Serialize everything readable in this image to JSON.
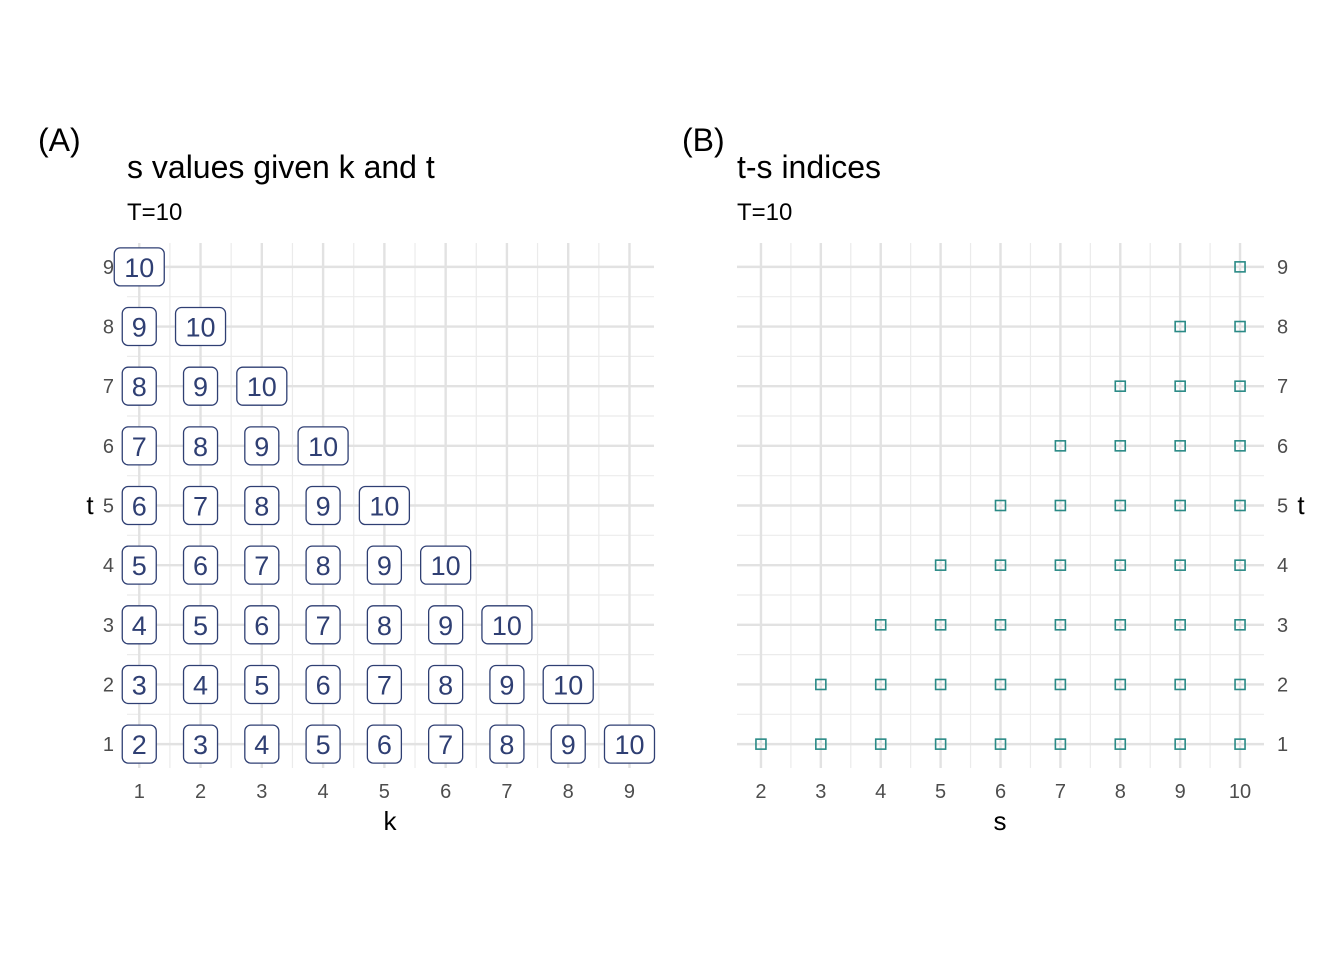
{
  "panels": [
    {
      "tag": "(A)",
      "chart_data": {
        "type": "scatter",
        "mark": "label",
        "title": "s values given k and t",
        "subtitle": "T=10",
        "xlabel": "k",
        "ylabel": "t",
        "x_ticks": [
          1,
          2,
          3,
          4,
          5,
          6,
          7,
          8,
          9
        ],
        "y_ticks": [
          1,
          2,
          3,
          4,
          5,
          6,
          7,
          8,
          9
        ],
        "xlim": [
          0.8,
          9.4
        ],
        "ylim": [
          0.6,
          9.4
        ],
        "y_axis_side": "left",
        "grid": true,
        "label_color": "#2f3f73",
        "points": [
          {
            "k": 1,
            "t": 1,
            "s": 2
          },
          {
            "k": 2,
            "t": 1,
            "s": 3
          },
          {
            "k": 3,
            "t": 1,
            "s": 4
          },
          {
            "k": 4,
            "t": 1,
            "s": 5
          },
          {
            "k": 5,
            "t": 1,
            "s": 6
          },
          {
            "k": 6,
            "t": 1,
            "s": 7
          },
          {
            "k": 7,
            "t": 1,
            "s": 8
          },
          {
            "k": 8,
            "t": 1,
            "s": 9
          },
          {
            "k": 9,
            "t": 1,
            "s": 10
          },
          {
            "k": 1,
            "t": 2,
            "s": 3
          },
          {
            "k": 2,
            "t": 2,
            "s": 4
          },
          {
            "k": 3,
            "t": 2,
            "s": 5
          },
          {
            "k": 4,
            "t": 2,
            "s": 6
          },
          {
            "k": 5,
            "t": 2,
            "s": 7
          },
          {
            "k": 6,
            "t": 2,
            "s": 8
          },
          {
            "k": 7,
            "t": 2,
            "s": 9
          },
          {
            "k": 8,
            "t": 2,
            "s": 10
          },
          {
            "k": 1,
            "t": 3,
            "s": 4
          },
          {
            "k": 2,
            "t": 3,
            "s": 5
          },
          {
            "k": 3,
            "t": 3,
            "s": 6
          },
          {
            "k": 4,
            "t": 3,
            "s": 7
          },
          {
            "k": 5,
            "t": 3,
            "s": 8
          },
          {
            "k": 6,
            "t": 3,
            "s": 9
          },
          {
            "k": 7,
            "t": 3,
            "s": 10
          },
          {
            "k": 1,
            "t": 4,
            "s": 5
          },
          {
            "k": 2,
            "t": 4,
            "s": 6
          },
          {
            "k": 3,
            "t": 4,
            "s": 7
          },
          {
            "k": 4,
            "t": 4,
            "s": 8
          },
          {
            "k": 5,
            "t": 4,
            "s": 9
          },
          {
            "k": 6,
            "t": 4,
            "s": 10
          },
          {
            "k": 1,
            "t": 5,
            "s": 6
          },
          {
            "k": 2,
            "t": 5,
            "s": 7
          },
          {
            "k": 3,
            "t": 5,
            "s": 8
          },
          {
            "k": 4,
            "t": 5,
            "s": 9
          },
          {
            "k": 5,
            "t": 5,
            "s": 10
          },
          {
            "k": 1,
            "t": 6,
            "s": 7
          },
          {
            "k": 2,
            "t": 6,
            "s": 8
          },
          {
            "k": 3,
            "t": 6,
            "s": 9
          },
          {
            "k": 4,
            "t": 6,
            "s": 10
          },
          {
            "k": 1,
            "t": 7,
            "s": 8
          },
          {
            "k": 2,
            "t": 7,
            "s": 9
          },
          {
            "k": 3,
            "t": 7,
            "s": 10
          },
          {
            "k": 1,
            "t": 8,
            "s": 9
          },
          {
            "k": 2,
            "t": 8,
            "s": 10
          },
          {
            "k": 1,
            "t": 9,
            "s": 10
          }
        ]
      }
    },
    {
      "tag": "(B)",
      "chart_data": {
        "type": "scatter",
        "mark": "open-square",
        "title": "t-s indices",
        "subtitle": "T=10",
        "xlabel": "s",
        "ylabel": "t",
        "x_ticks": [
          2,
          3,
          4,
          5,
          6,
          7,
          8,
          9,
          10
        ],
        "y_ticks": [
          1,
          2,
          3,
          4,
          5,
          6,
          7,
          8,
          9
        ],
        "xlim": [
          1.6,
          10.4
        ],
        "ylim": [
          0.6,
          9.4
        ],
        "y_axis_side": "right",
        "grid": true,
        "marker_color": "#2a8a86",
        "points": [
          {
            "s": 2,
            "t": 1
          },
          {
            "s": 3,
            "t": 1
          },
          {
            "s": 4,
            "t": 1
          },
          {
            "s": 5,
            "t": 1
          },
          {
            "s": 6,
            "t": 1
          },
          {
            "s": 7,
            "t": 1
          },
          {
            "s": 8,
            "t": 1
          },
          {
            "s": 9,
            "t": 1
          },
          {
            "s": 10,
            "t": 1
          },
          {
            "s": 3,
            "t": 2
          },
          {
            "s": 4,
            "t": 2
          },
          {
            "s": 5,
            "t": 2
          },
          {
            "s": 6,
            "t": 2
          },
          {
            "s": 7,
            "t": 2
          },
          {
            "s": 8,
            "t": 2
          },
          {
            "s": 9,
            "t": 2
          },
          {
            "s": 10,
            "t": 2
          },
          {
            "s": 4,
            "t": 3
          },
          {
            "s": 5,
            "t": 3
          },
          {
            "s": 6,
            "t": 3
          },
          {
            "s": 7,
            "t": 3
          },
          {
            "s": 8,
            "t": 3
          },
          {
            "s": 9,
            "t": 3
          },
          {
            "s": 10,
            "t": 3
          },
          {
            "s": 5,
            "t": 4
          },
          {
            "s": 6,
            "t": 4
          },
          {
            "s": 7,
            "t": 4
          },
          {
            "s": 8,
            "t": 4
          },
          {
            "s": 9,
            "t": 4
          },
          {
            "s": 10,
            "t": 4
          },
          {
            "s": 6,
            "t": 5
          },
          {
            "s": 7,
            "t": 5
          },
          {
            "s": 8,
            "t": 5
          },
          {
            "s": 9,
            "t": 5
          },
          {
            "s": 10,
            "t": 5
          },
          {
            "s": 7,
            "t": 6
          },
          {
            "s": 8,
            "t": 6
          },
          {
            "s": 9,
            "t": 6
          },
          {
            "s": 10,
            "t": 6
          },
          {
            "s": 8,
            "t": 7
          },
          {
            "s": 9,
            "t": 7
          },
          {
            "s": 10,
            "t": 7
          },
          {
            "s": 9,
            "t": 8
          },
          {
            "s": 10,
            "t": 8
          },
          {
            "s": 10,
            "t": 9
          }
        ]
      }
    }
  ]
}
